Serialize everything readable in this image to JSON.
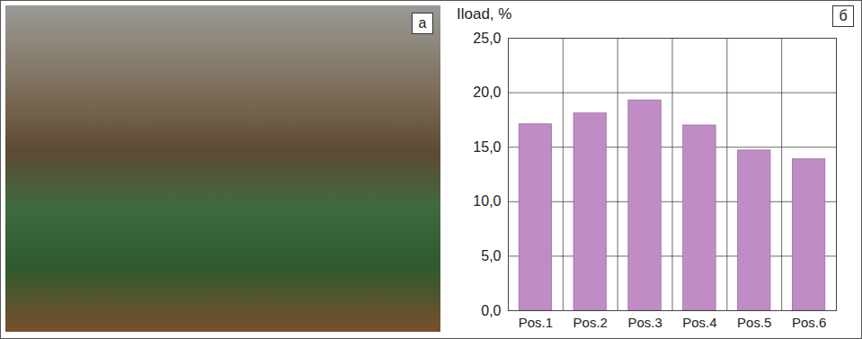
{
  "photo_panel": {
    "label": "а"
  },
  "chart_data": {
    "type": "bar",
    "panel_label": "б",
    "ylabel": "Iload, %",
    "categories": [
      "Pos.1",
      "Pos.2",
      "Pos.3",
      "Pos.4",
      "Pos.5",
      "Pos.6"
    ],
    "values": [
      17.1,
      18.1,
      19.3,
      17.0,
      14.7,
      13.9
    ],
    "color": "#c08cc6",
    "ylim": [
      0,
      25
    ],
    "yticks": [
      {
        "value": 0,
        "label": "0,0"
      },
      {
        "value": 5,
        "label": "5,0"
      },
      {
        "value": 10,
        "label": "10,0"
      },
      {
        "value": 15,
        "label": "15,0"
      },
      {
        "value": 20,
        "label": "20,0"
      },
      {
        "value": 25,
        "label": "25,0"
      }
    ],
    "grid": true
  }
}
